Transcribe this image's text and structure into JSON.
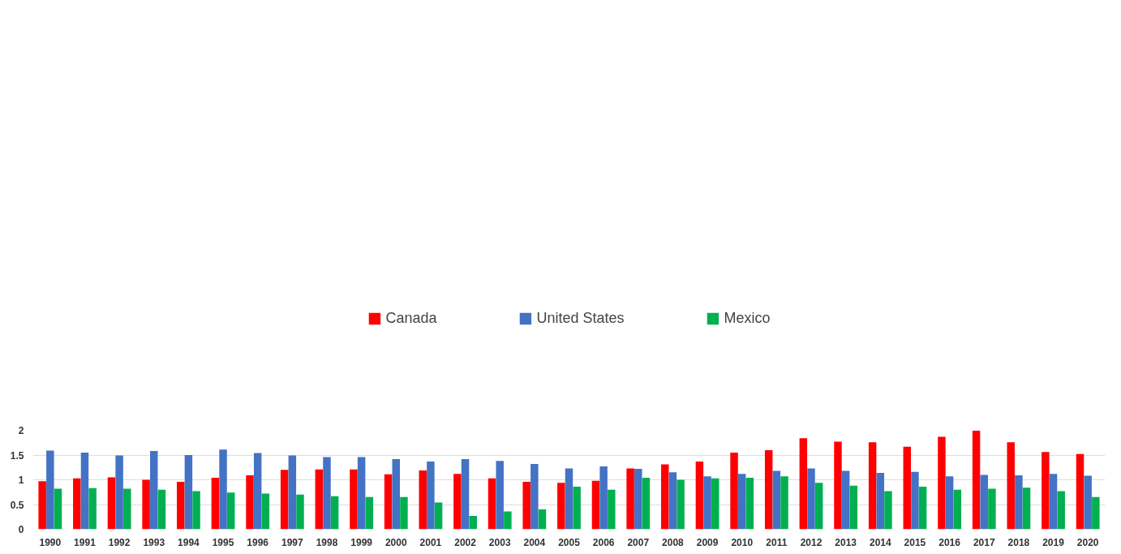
{
  "chart_data": {
    "type": "bar",
    "categories": [
      "1990",
      "1991",
      "1992",
      "1993",
      "1994",
      "1995",
      "1996",
      "1997",
      "1998",
      "1999",
      "2000",
      "2001",
      "2002",
      "2003",
      "2004",
      "2005",
      "2006",
      "2007",
      "2008",
      "2009",
      "2010",
      "2011",
      "2012",
      "2013",
      "2014",
      "2015",
      "2016",
      "2017",
      "2018",
      "2019",
      "2020"
    ],
    "series": [
      {
        "name": "Canada",
        "color": "#ff0000",
        "values": [
          0.97,
          1.03,
          1.05,
          1.0,
          0.96,
          1.04,
          1.09,
          1.2,
          1.21,
          1.21,
          1.11,
          1.19,
          1.12,
          1.03,
          0.96,
          0.94,
          0.98,
          1.23,
          1.31,
          1.37,
          1.55,
          1.6,
          1.84,
          1.77,
          1.76,
          1.67,
          1.87,
          1.99,
          1.76,
          1.56,
          1.52
        ]
      },
      {
        "name": "United States",
        "color": "#4472c4",
        "values": [
          1.59,
          1.55,
          1.49,
          1.58,
          1.5,
          1.61,
          1.54,
          1.49,
          1.46,
          1.46,
          1.42,
          1.37,
          1.42,
          1.38,
          1.32,
          1.23,
          1.27,
          1.22,
          1.15,
          1.07,
          1.12,
          1.18,
          1.23,
          1.18,
          1.14,
          1.16,
          1.07,
          1.1,
          1.09,
          1.12,
          1.08
        ]
      },
      {
        "name": "Mexico",
        "color": "#00b050",
        "values": [
          0.82,
          0.83,
          0.82,
          0.8,
          0.77,
          0.74,
          0.72,
          0.7,
          0.67,
          0.65,
          0.65,
          0.54,
          0.27,
          0.36,
          0.4,
          0.86,
          0.8,
          1.04,
          1.0,
          1.03,
          1.04,
          1.07,
          0.94,
          0.88,
          0.77,
          0.86,
          0.8,
          0.82,
          0.84,
          0.77,
          0.65
        ]
      }
    ],
    "ylim": [
      0,
      2
    ],
    "yticks": [
      0,
      0.5,
      1,
      1.5,
      2
    ],
    "grid": "y",
    "legend": "top"
  }
}
